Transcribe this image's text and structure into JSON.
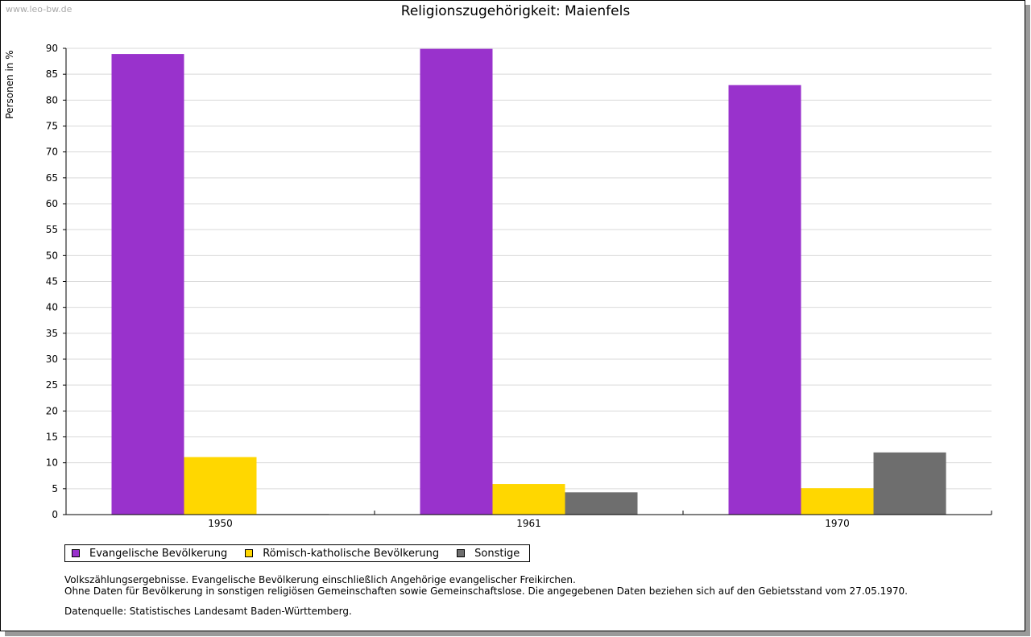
{
  "watermark": "www.leo-bw.de",
  "notes": [
    "Volkszählungsergebnisse. Evangelische Bevölkerung einschließlich Angehörige evangelischer Freikirchen.",
    "Ohne Daten für Bevölkerung in sonstigen religiösen Gemeinschaften sowie Gemeinschaftslose. Die angegebenen Daten beziehen sich auf den Gebietsstand vom 27.05.1970."
  ],
  "source": "Datenquelle: Statistisches Landesamt Baden-Württemberg.",
  "chart_data": {
    "type": "bar",
    "title": "Religionszugehörigkeit: Maienfels",
    "xlabel": "",
    "ylabel": "Personen in %",
    "categories": [
      "1950",
      "1961",
      "1970"
    ],
    "ylim": [
      0,
      90
    ],
    "yticks": [
      0,
      5,
      10,
      15,
      20,
      25,
      30,
      35,
      40,
      45,
      50,
      55,
      60,
      65,
      70,
      75,
      80,
      85,
      90
    ],
    "grid": true,
    "legend_position": "bottom-left",
    "series": [
      {
        "name": "Evangelische Bevölkerung",
        "color": "#9932CC",
        "values": [
          88.9,
          89.9,
          82.9
        ]
      },
      {
        "name": "Römisch-katholische Bevölkerung",
        "color": "#FFD700",
        "values": [
          11.1,
          5.9,
          5.1
        ]
      },
      {
        "name": "Sonstige",
        "color": "#6E6E6E",
        "values": [
          0.1,
          4.3,
          12.0
        ]
      }
    ]
  }
}
